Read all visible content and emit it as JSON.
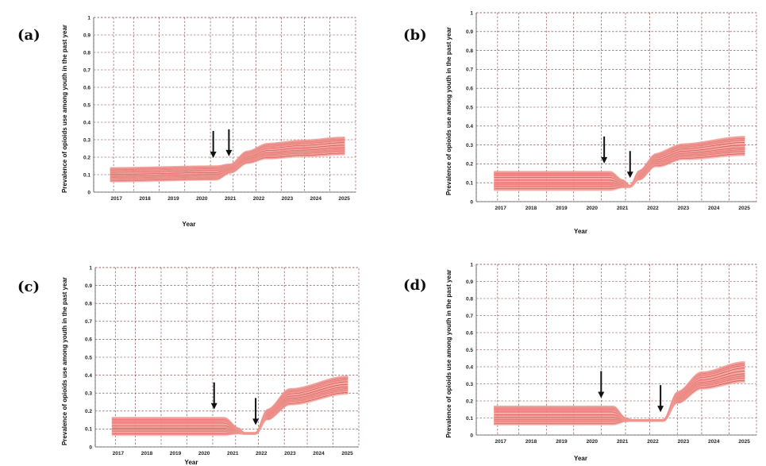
{
  "figure": {
    "panels": [
      {
        "label": "(a)",
        "ylabel": "Prevalence of opioids use among youth in the past year",
        "xlabel": "Year"
      },
      {
        "label": "(b)",
        "ylabel": "Prevalence of opioids use among youth in the past year",
        "xlabel": "Year"
      },
      {
        "label": "(c)",
        "ylabel": "Prevalence of opioids use among youth in the past year",
        "xlabel": "Year"
      },
      {
        "label": "(d)",
        "ylabel": "Prevalence of opioids use among youth in the past year",
        "xlabel": "Year"
      }
    ],
    "colors": {
      "line_light": "#f6b9b3",
      "line_mid": "#ec8b85",
      "line_dark": "#d63a3a",
      "grid": "#7a3a3a",
      "arrow": "#111111"
    }
  },
  "chart_data": [
    {
      "type": "line",
      "title": "",
      "panel_label": "(a)",
      "xlabel": "Year",
      "ylabel": "Prevalence of opioids use among youth in the past year",
      "x_ticks": [
        "2017",
        "2018",
        "2019",
        "2020",
        "2021",
        "2022",
        "2023",
        "2024",
        "2025"
      ],
      "y_ticks": [
        "0",
        "0.1",
        "0.2",
        "0.3",
        "0.4",
        "0.5",
        "0.6",
        "0.7",
        "0.8",
        "0.9",
        "1"
      ],
      "xlim": [
        2016.2,
        2025.4
      ],
      "ylim": [
        0,
        1
      ],
      "grid": true,
      "band_profile": [
        [
          2016.8,
          0.1
        ],
        [
          2020.5,
          0.11
        ],
        [
          2021.0,
          0.135
        ],
        [
          2021.6,
          0.2
        ],
        [
          2022.3,
          0.235
        ],
        [
          2023.5,
          0.25
        ],
        [
          2025.0,
          0.265
        ]
      ],
      "band_spread": [
        [
          2016.8,
          0.04
        ],
        [
          2020.5,
          0.04
        ],
        [
          2021.0,
          0.025
        ],
        [
          2021.6,
          0.035
        ],
        [
          2022.5,
          0.045
        ],
        [
          2025.0,
          0.05
        ]
      ],
      "interventions": [
        2020.4,
        2020.95
      ]
    },
    {
      "type": "line",
      "title": "",
      "panel_label": "(b)",
      "xlabel": "Year",
      "ylabel": "Prevalence of opioids use among youth in the past year",
      "x_ticks": [
        "2017",
        "2018",
        "2019",
        "2020",
        "2021",
        "2022",
        "2023",
        "2024",
        "2025"
      ],
      "y_ticks": [
        "0",
        "0.1",
        "0.2",
        "0.3",
        "0.4",
        "0.5",
        "0.6",
        "0.7",
        "0.8",
        "0.9",
        "1"
      ],
      "xlim": [
        2016.2,
        2025.4
      ],
      "ylim": [
        0,
        1
      ],
      "grid": true,
      "band_profile": [
        [
          2016.8,
          0.11
        ],
        [
          2020.6,
          0.11
        ],
        [
          2021.0,
          0.095
        ],
        [
          2021.25,
          0.08
        ],
        [
          2021.55,
          0.14
        ],
        [
          2022.1,
          0.22
        ],
        [
          2023.0,
          0.265
        ],
        [
          2025.0,
          0.295
        ]
      ],
      "band_spread": [
        [
          2016.8,
          0.05
        ],
        [
          2020.6,
          0.05
        ],
        [
          2021.0,
          0.02
        ],
        [
          2021.25,
          0.003
        ],
        [
          2021.6,
          0.025
        ],
        [
          2022.5,
          0.04
        ],
        [
          2025.0,
          0.05
        ]
      ],
      "interventions": [
        2020.4,
        2021.25
      ]
    },
    {
      "type": "line",
      "title": "",
      "panel_label": "(c)",
      "xlabel": "Year",
      "ylabel": "Prevalence of opioids use among youth in the past year",
      "x_ticks": [
        "2017",
        "2018",
        "2019",
        "2020",
        "2021",
        "2022",
        "2023",
        "2024",
        "2025"
      ],
      "y_ticks": [
        "0",
        "0.1",
        "0.2",
        "0.3",
        "0.4",
        "0.5",
        "0.6",
        "0.7",
        "0.8",
        "0.9",
        "1"
      ],
      "xlim": [
        2016.2,
        2025.4
      ],
      "ylim": [
        0,
        1
      ],
      "grid": true,
      "band_profile": [
        [
          2016.8,
          0.115
        ],
        [
          2020.7,
          0.115
        ],
        [
          2021.2,
          0.09
        ],
        [
          2021.4,
          0.075
        ],
        [
          2021.8,
          0.075
        ],
        [
          2022.2,
          0.18
        ],
        [
          2023.0,
          0.28
        ],
        [
          2025.0,
          0.345
        ]
      ],
      "band_spread": [
        [
          2016.8,
          0.05
        ],
        [
          2020.7,
          0.05
        ],
        [
          2021.2,
          0.015
        ],
        [
          2021.4,
          0.003
        ],
        [
          2021.8,
          0.003
        ],
        [
          2022.3,
          0.03
        ],
        [
          2023.0,
          0.045
        ],
        [
          2025.0,
          0.05
        ]
      ],
      "interventions": [
        2020.35,
        2021.8
      ]
    },
    {
      "type": "line",
      "title": "",
      "panel_label": "(d)",
      "xlabel": "Year",
      "ylabel": "Prevalence of opioids use among youth in the past year",
      "x_ticks": [
        "2017",
        "2018",
        "2019",
        "2020",
        "2021",
        "2022",
        "2023",
        "2024",
        "2025"
      ],
      "y_ticks": [
        "0",
        "0.1",
        "0.2",
        "0.3",
        "0.4",
        "0.5",
        "0.6",
        "0.7",
        "0.8",
        "0.9",
        "1"
      ],
      "xlim": [
        2016.2,
        2025.4
      ],
      "ylim": [
        0,
        1
      ],
      "grid": true,
      "band_profile": [
        [
          2016.8,
          0.115
        ],
        [
          2020.7,
          0.115
        ],
        [
          2021.1,
          0.09
        ],
        [
          2021.3,
          0.085
        ],
        [
          2022.35,
          0.085
        ],
        [
          2022.8,
          0.22
        ],
        [
          2023.6,
          0.32
        ],
        [
          2025.0,
          0.37
        ]
      ],
      "band_spread": [
        [
          2016.8,
          0.055
        ],
        [
          2020.7,
          0.055
        ],
        [
          2021.1,
          0.01
        ],
        [
          2021.3,
          0.003
        ],
        [
          2022.35,
          0.003
        ],
        [
          2022.9,
          0.035
        ],
        [
          2023.6,
          0.05
        ],
        [
          2025.0,
          0.06
        ]
      ],
      "interventions": [
        2020.3,
        2022.25
      ]
    }
  ]
}
